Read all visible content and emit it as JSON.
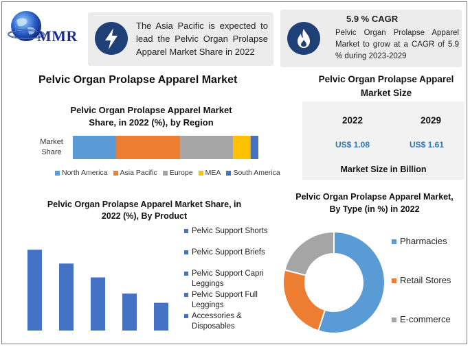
{
  "colors": {
    "north_america": "#5b9bd5",
    "asia_pacific": "#ed7d31",
    "europe": "#a5a5a5",
    "mea": "#ffc000",
    "south_america": "#4472c4",
    "product_bar": "#4472c4",
    "pharmacies": "#5b9bd5",
    "retail_stores": "#ed7d31",
    "e_commerce": "#a5a5a5",
    "icon_bg": "#1f3f77",
    "value_blue": "#2e75b6"
  },
  "logo": {
    "text": "MMR"
  },
  "card1": {
    "icon": "lightning-icon",
    "text": "The Asia Pacific is expected to lead the Pelvic Organ Prolapse Apparel Market Share in 2022"
  },
  "card2": {
    "icon": "flame-icon",
    "title": "5.9 % CAGR",
    "text": "Pelvic Organ Prolapse Apparel Market to grow at a CAGR of 5.9 % during 2023-2029"
  },
  "main_title": "Pelvic Organ Prolapse Apparel Market",
  "market_size": {
    "title": "Pelvic Organ Prolapse Apparel Market Size",
    "year1": "2022",
    "year2": "2029",
    "value1": "US$ 1.08",
    "value2": "US$ 1.61",
    "footer": "Market Size in Billion"
  },
  "chart_data": [
    {
      "type": "bar",
      "stacked": true,
      "orientation": "horizontal",
      "title": "Pelvic Organ Prolapse Apparel Market Share, in 2022 (%), by Region",
      "categories": [
        "Market Share"
      ],
      "series": [
        {
          "name": "North America",
          "values": [
            22
          ]
        },
        {
          "name": "Asia Pacific",
          "values": [
            33
          ]
        },
        {
          "name": "Europe",
          "values": [
            27
          ]
        },
        {
          "name": "MEA",
          "values": [
            9
          ]
        },
        {
          "name": "South America",
          "values": [
            4
          ]
        }
      ],
      "legend": "bottom"
    },
    {
      "type": "bar",
      "title": "Pelvic Organ Prolapse Apparel Market Share, in 2022 (%), By Product",
      "categories": [
        "Pelvic Support Shorts",
        "Pelvic Support Briefs",
        "Pelvic Support Capri Leggings",
        "Pelvic Support Full Leggings",
        "Accessories & Disposables"
      ],
      "values": [
        35,
        29,
        23,
        16,
        12
      ],
      "legend": "right",
      "grid": false
    },
    {
      "type": "pie",
      "donut": true,
      "title": "Pelvic Organ Prolapse Apparel Market, By Type (in %) in 2022",
      "categories": [
        "Pharmacies",
        "Retail Stores",
        "E-commerce"
      ],
      "values": [
        55,
        24,
        21
      ],
      "legend": "right"
    }
  ]
}
